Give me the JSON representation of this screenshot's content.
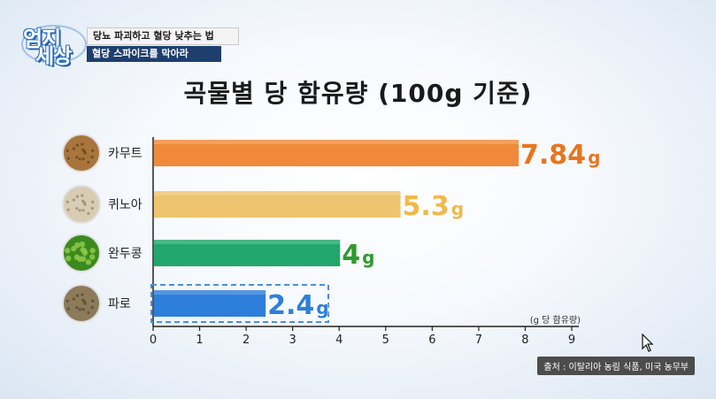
{
  "header": {
    "logo_top": "엄지",
    "logo_bottom": "세상",
    "caption_line1": "당뇨 파괴하고 혈당 낮추는 법",
    "caption_line2": "혈당 스파이크를 막아라"
  },
  "chart_data": {
    "type": "bar",
    "orientation": "horizontal",
    "title": "곡물별 당 함유량 (100g 기준)",
    "xlabel": "(g 당 함유량)",
    "ylabel": "",
    "xlim": [
      0,
      9
    ],
    "x_ticks": [
      "0",
      "1",
      "2",
      "3",
      "4",
      "5",
      "6",
      "7",
      "8",
      "9"
    ],
    "categories": [
      "카무트",
      "퀴노아",
      "완두콩",
      "파로"
    ],
    "values": [
      7.84,
      5.3,
      4,
      2.4
    ],
    "value_labels": [
      "7.84",
      "5.3",
      "4",
      "2.4"
    ],
    "unit": "g",
    "bar_colors": [
      "#f08a3a",
      "#efc46f",
      "#21a76b",
      "#2e7fdb"
    ],
    "label_colors": [
      "#e8751e",
      "#f0b94b",
      "#2f9a2e",
      "#2e7fdb"
    ],
    "highlighted_category": "파로",
    "grid": false,
    "legend": "none"
  },
  "source": "출처 : 이탈리아 농림 식품, 미국 농무부"
}
